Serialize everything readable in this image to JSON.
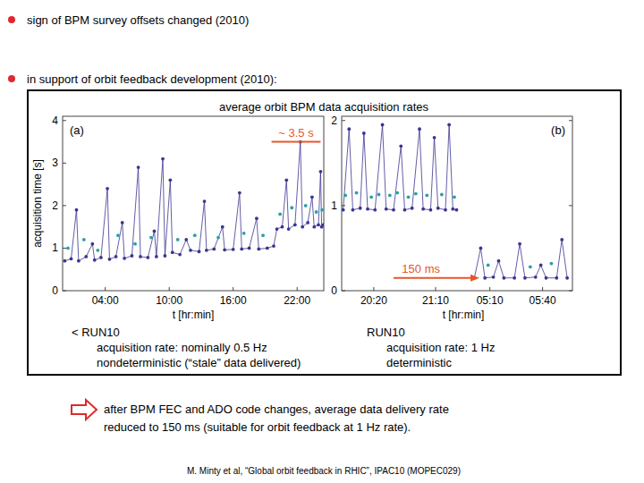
{
  "slide": {
    "bullets": [
      "sign of BPM survey offsets changed (2010)",
      "in support of orbit feedback development (2010):"
    ],
    "figure_heading": "average orbit BPM data acquisition rates",
    "captions": [
      [
        "< RUN10",
        "acquisition rate: nominally 0.5 Hz",
        "nondeterministic (“stale” data delivered)"
      ],
      [
        "RUN10",
        "acquisition rate: 1 Hz",
        "deterministic"
      ]
    ],
    "conclusion": [
      "after BPM FEC and ADO code changes, average data delivery rate",
      "reduced to 150 ms (suitable for orbit feedback at 1 Hz rate)."
    ],
    "citation": "M. Minty et al, “Global orbit feedback in RHIC”, IPAC10 (MOPEC029)"
  },
  "chart_data": [
    {
      "type": "line",
      "title": "(a)",
      "y_label": "acquisition time [s]",
      "x_label": "t [hr:min]",
      "xlim": [
        0,
        24.5
      ],
      "xticks": [
        {
          "value": 4,
          "label": "04:00"
        },
        {
          "value": 10,
          "label": "10:00"
        },
        {
          "value": 16,
          "label": "16:00"
        },
        {
          "value": 22,
          "label": "22:00"
        }
      ],
      "ylim": [
        0,
        4.1
      ],
      "yticks": [
        0,
        1,
        2,
        3,
        4
      ],
      "series": [
        {
          "type": "line",
          "marker": "circle",
          "color": "#3b3592",
          "x": [
            0.2,
            0.8,
            1.3,
            1.5,
            2.2,
            2.8,
            3.0,
            3.6,
            4.2,
            4.4,
            5.0,
            5.6,
            5.8,
            6.5,
            7.1,
            7.3,
            8.0,
            8.6,
            8.8,
            9.4,
            9.6,
            10.1,
            10.3,
            11.0,
            11.6,
            12.0,
            12.8,
            13.3,
            13.5,
            14.2,
            15.0,
            15.2,
            16.0,
            16.6,
            16.8,
            17.5,
            18.2,
            18.4,
            19.2,
            19.8,
            20.1,
            20.6,
            21.0,
            21.2,
            21.8,
            22.3,
            22.5,
            23.0,
            23.4,
            23.6,
            24.0,
            24.2,
            24.3,
            24.45
          ],
          "values": [
            0.7,
            0.75,
            1.9,
            0.7,
            0.8,
            1.1,
            0.72,
            0.78,
            2.4,
            0.74,
            0.8,
            1.6,
            0.76,
            0.82,
            2.9,
            0.8,
            0.78,
            1.4,
            0.8,
            3.1,
            0.82,
            2.6,
            0.9,
            0.85,
            1.2,
            0.95,
            0.92,
            2.1,
            0.95,
            0.98,
            1.5,
            0.96,
            0.97,
            2.3,
            0.98,
            1.0,
            1.7,
            0.98,
            1.0,
            1.05,
            1.45,
            1.5,
            2.6,
            1.45,
            1.55,
            3.5,
            1.5,
            1.6,
            2.2,
            1.5,
            1.55,
            2.8,
            1.5,
            1.55
          ]
        },
        {
          "type": "scatter",
          "marker": "circle",
          "color": "#2a9fa5",
          "x": [
            0.5,
            2.0,
            3.3,
            5.2,
            6.8,
            8.3,
            10.8,
            12.4,
            14.6,
            17.0,
            18.8,
            20.4,
            21.5,
            22.8,
            23.8,
            24.35
          ],
          "values": [
            1.0,
            1.2,
            0.95,
            1.3,
            1.1,
            1.25,
            1.2,
            1.3,
            1.25,
            1.35,
            1.3,
            1.8,
            1.95,
            2.0,
            1.85,
            1.9
          ]
        }
      ],
      "annotations": [
        {
          "text": "~ 3.5 s",
          "y": 3.5,
          "x": [
            19.6,
            24.2
          ]
        }
      ]
    },
    {
      "type": "line",
      "x_label": "t [hr:min]",
      "xlim": [
        19.9,
        21.65
      ],
      "xticks": [
        {
          "value": 20.3333,
          "label": "20:20"
        },
        {
          "value": 21.1667,
          "label": "21:10"
        }
      ],
      "ylim": [
        0,
        2.05
      ],
      "yticks": [
        0,
        1,
        2
      ],
      "series": [
        {
          "type": "line",
          "marker": "circle",
          "color": "#3b3592",
          "x": [
            19.92,
            20.0,
            20.05,
            20.15,
            20.2,
            20.25,
            20.35,
            20.45,
            20.5,
            20.6,
            20.7,
            20.75,
            20.85,
            20.95,
            21.0,
            21.1,
            21.15,
            21.2,
            21.3,
            21.35,
            21.4,
            21.45
          ],
          "values": [
            0.95,
            1.9,
            0.95,
            0.97,
            1.85,
            0.96,
            0.95,
            1.95,
            0.96,
            0.95,
            1.7,
            0.95,
            0.97,
            1.9,
            0.96,
            0.95,
            1.8,
            0.97,
            0.95,
            1.95,
            0.96,
            0.95
          ]
        },
        {
          "type": "scatter",
          "marker": "circle",
          "color": "#2a9fa5",
          "x": [
            19.95,
            20.1,
            20.3,
            20.4,
            20.55,
            20.65,
            20.8,
            20.9,
            21.05,
            21.25,
            21.42
          ],
          "values": [
            1.12,
            1.15,
            1.1,
            1.13,
            1.12,
            1.15,
            1.1,
            1.14,
            1.12,
            1.13,
            1.1
          ]
        }
      ]
    },
    {
      "type": "line",
      "title": "(b)",
      "xlim": [
        5.0,
        5.95
      ],
      "xticks": [
        {
          "value": 5.1667,
          "label": "05:10"
        },
        {
          "value": 5.6667,
          "label": "05:40"
        }
      ],
      "ylim": [
        0,
        2.05
      ],
      "yticks": [
        0,
        1,
        2
      ],
      "tick_labels": "x",
      "series": [
        {
          "type": "line",
          "marker": "circle",
          "color": "#3b3592",
          "x": [
            5.02,
            5.08,
            5.12,
            5.2,
            5.25,
            5.3,
            5.4,
            5.45,
            5.5,
            5.6,
            5.65,
            5.7,
            5.8,
            5.85,
            5.9
          ],
          "values": [
            0.15,
            0.5,
            0.15,
            0.16,
            0.35,
            0.15,
            0.15,
            0.55,
            0.15,
            0.16,
            0.3,
            0.15,
            0.15,
            0.6,
            0.15
          ]
        },
        {
          "type": "scatter",
          "marker": "circle",
          "color": "#2a9fa5",
          "x": [
            5.15,
            5.55,
            5.75
          ],
          "values": [
            0.3,
            0.28,
            0.32
          ]
        }
      ],
      "annotations": [
        {
          "text": "150 ms",
          "y": 0.15
        }
      ]
    }
  ]
}
